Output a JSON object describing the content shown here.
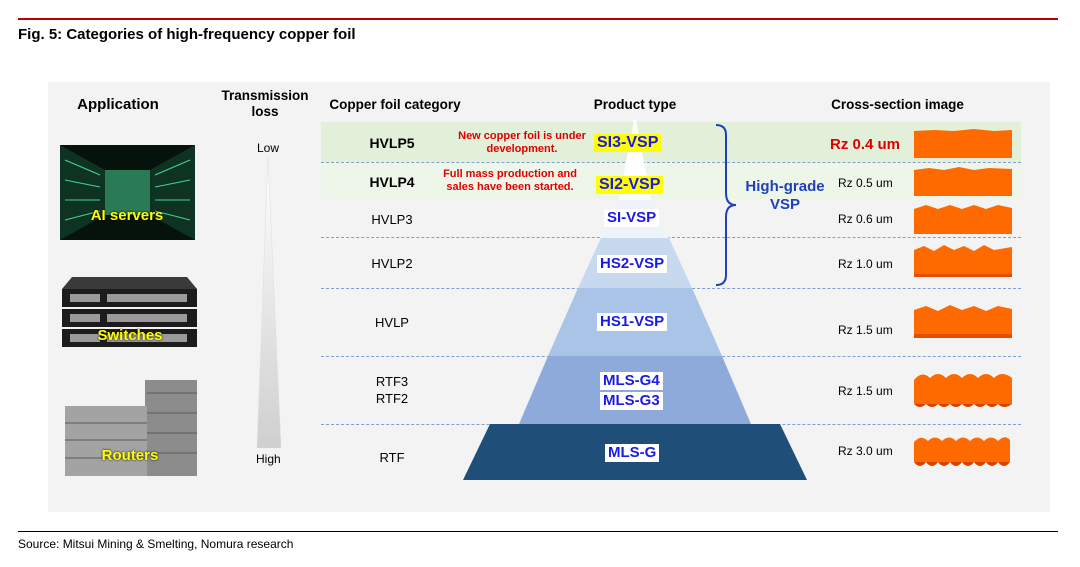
{
  "figure": {
    "title": "Fig. 5: Categories of high-frequency copper foil",
    "source": "Source: Mitsui Mining & Smelting, Nomura research"
  },
  "headers": {
    "application": "Application",
    "transmission_loss": "Transmission loss",
    "copper_foil_category": "Copper foil category",
    "product_type": "Product type",
    "cross_section": "Cross-section image"
  },
  "transmission_loss": {
    "low": "Low",
    "high": "High"
  },
  "applications": [
    {
      "label": "AI servers"
    },
    {
      "label": "Switches"
    },
    {
      "label": "Routers"
    }
  ],
  "rows": [
    {
      "category": "HVLP5",
      "product": "SI3-VSP",
      "rz": "Rz 0.4 um",
      "note": "New copper foil is under development."
    },
    {
      "category": "HVLP4",
      "product": "SI2-VSP",
      "rz": "Rz 0.5 um",
      "note": "Full mass production and sales have been started."
    },
    {
      "category": "HVLP3",
      "product": "SI-VSP",
      "rz": "Rz 0.6 um"
    },
    {
      "category": "HVLP2",
      "product": "HS2-VSP",
      "rz": "Rz 1.0 um"
    },
    {
      "category": "HVLP",
      "product": "HS1-VSP",
      "rz": "Rz 1.5 um"
    },
    {
      "category_lines": [
        "RTF3",
        "RTF2"
      ],
      "products": [
        "MLS-G4",
        "MLS-G3"
      ],
      "rz": "Rz 1.5 um"
    },
    {
      "category": "RTF",
      "product": "MLS-G",
      "rz": "Rz 3.0 um"
    }
  ],
  "high_grade_label": [
    "High-grade",
    "VSP"
  ],
  "colors": {
    "accent_red": "#c00000",
    "band_highlight": "#e2efd9",
    "product_blue": "#1a1ae6",
    "foil_orange": "#ff6a00",
    "pyramid_levels": [
      "#ffffff",
      "#e6eef8",
      "#c6d9ef",
      "#a9c4e6",
      "#8eaadb",
      "#2f74b5",
      "#1f4e79"
    ]
  }
}
